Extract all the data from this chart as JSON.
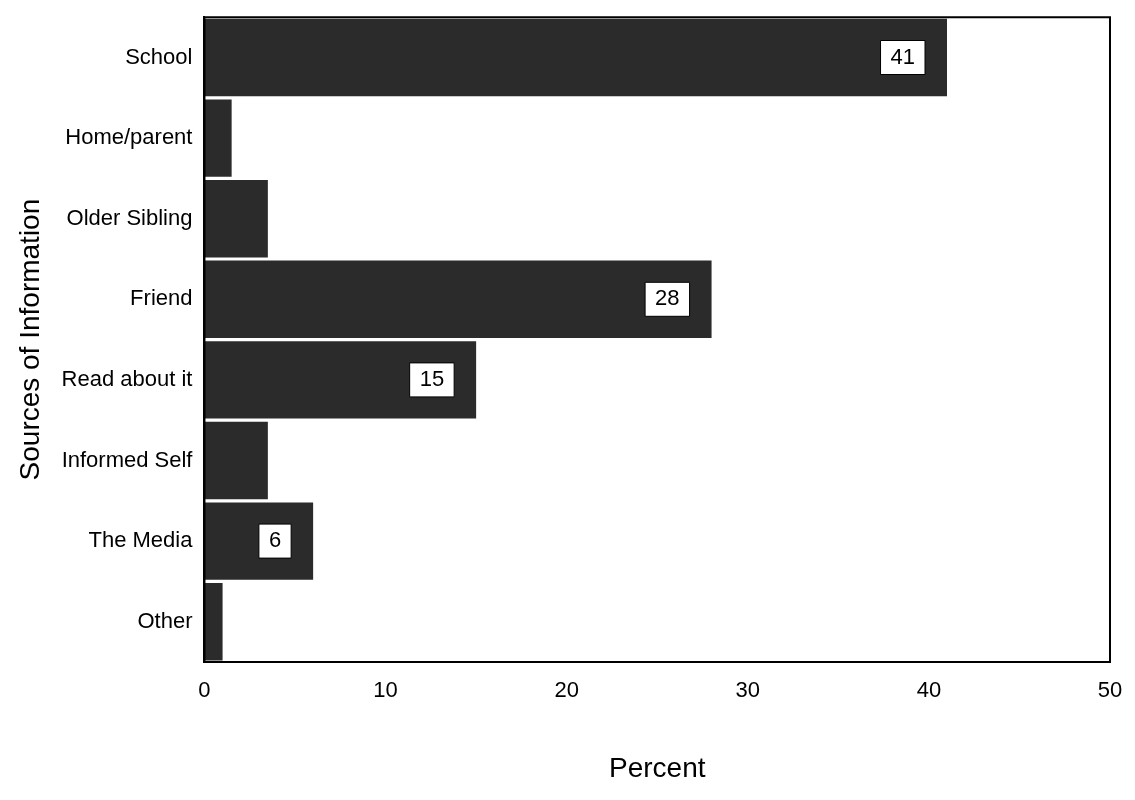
{
  "chart_data": {
    "type": "bar",
    "orientation": "horizontal",
    "xlabel": "Percent",
    "ylabel": "Sources of Information",
    "categories": [
      "School",
      "Home/parent",
      "Older Sibling",
      "Friend",
      "Read about it",
      "Informed Self",
      "The Media",
      "Other"
    ],
    "values": [
      41,
      1.5,
      3.5,
      28,
      15,
      3.5,
      6,
      1
    ],
    "value_labels": [
      "41",
      null,
      null,
      "28",
      "15",
      null,
      "6",
      null
    ],
    "color": "#2b2b2b",
    "xlim": [
      0,
      50
    ],
    "xticks": [
      0,
      10,
      20,
      30,
      40,
      50
    ],
    "grid": false,
    "legend": false
  }
}
